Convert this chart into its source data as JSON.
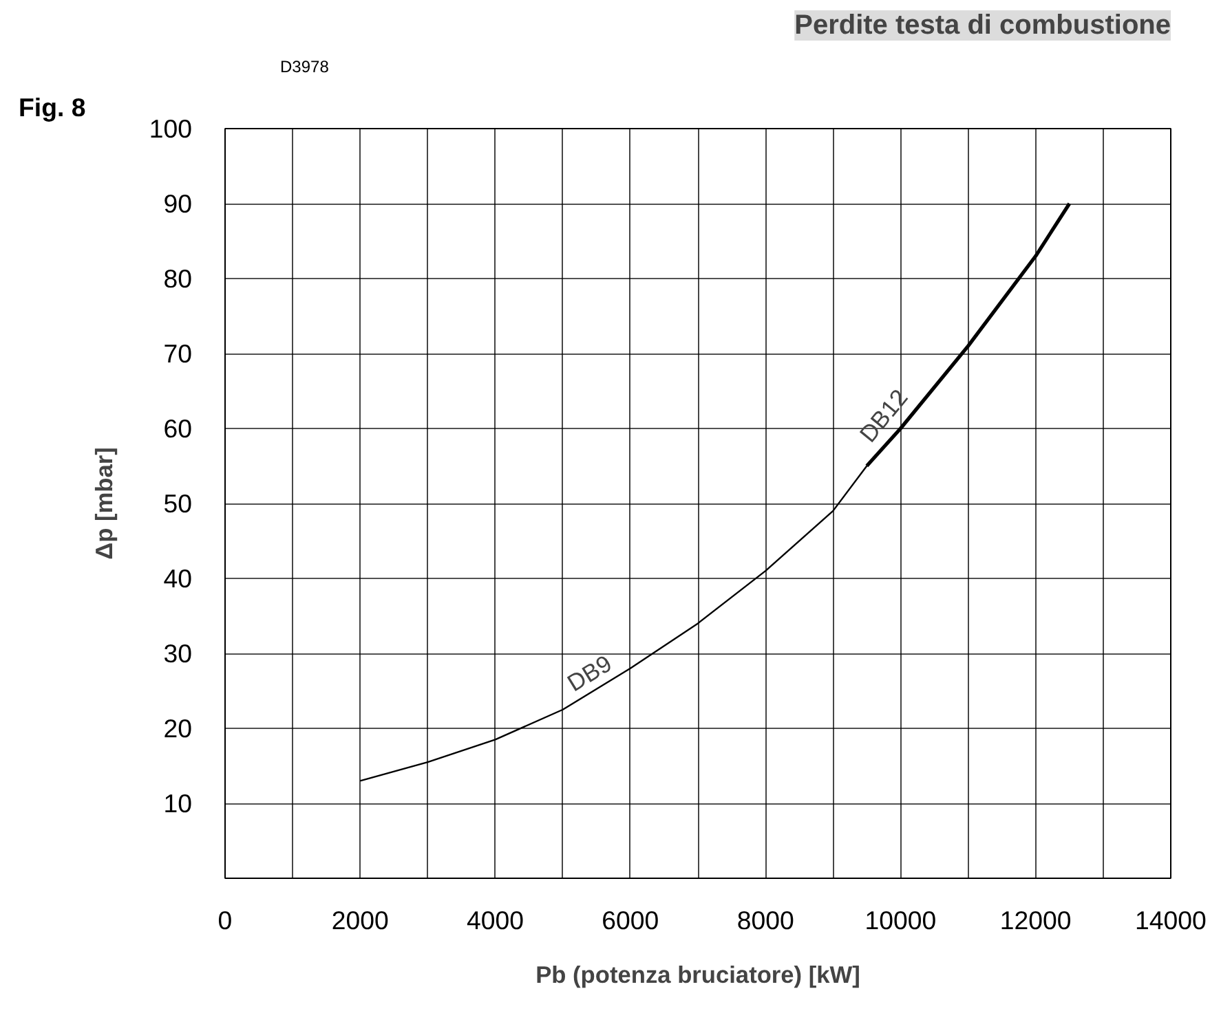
{
  "chart_data": {
    "type": "line",
    "title": "Perdite testa di combustione",
    "xlabel": "Pb (potenza bruciatore) [kW]",
    "ylabel": "Δp [mbar]",
    "annotations": [
      "Fig. 8",
      "D3978"
    ],
    "series": [
      {
        "name": "DB9",
        "color": "#000000",
        "x": [
          2000,
          3000,
          4000,
          5000,
          6000,
          7000,
          8000,
          9000,
          9500
        ],
        "values": [
          13,
          15.5,
          18.5,
          22.5,
          28,
          34,
          41,
          49,
          55
        ]
      },
      {
        "name": "DB12",
        "color": "#000000",
        "x": [
          9500,
          10000,
          11000,
          12000,
          12500
        ],
        "values": [
          55,
          60,
          71,
          83,
          90
        ]
      }
    ],
    "xlim": [
      0,
      14000
    ],
    "ylim": [
      0,
      100
    ],
    "xticks": [
      0,
      {
        "value": 1000,
        "label": null
      },
      2000,
      {
        "value": 3000,
        "label": null
      },
      4000,
      {
        "value": 5000,
        "label": null
      },
      6000,
      {
        "value": 7000,
        "label": null
      },
      8000,
      {
        "value": 9000,
        "label": null
      },
      10000,
      {
        "value": 11000,
        "label": null
      },
      12000,
      {
        "value": 13000,
        "label": null
      },
      14000
    ],
    "yticks": [
      {
        "value": 0,
        "label": null
      },
      10,
      20,
      30,
      40,
      50,
      60,
      70,
      80,
      90,
      100
    ],
    "grid": true,
    "marker": "none",
    "line_style": "solid"
  }
}
